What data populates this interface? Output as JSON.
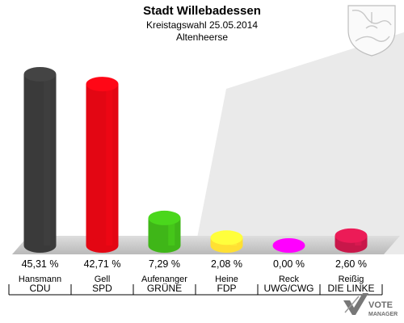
{
  "chart_data": {
    "type": "bar",
    "title": "Stadt Willebadessen",
    "subtitle": "Kreistagswahl 25.05.2014",
    "subtitle2": "Altenheerse",
    "unit": "%",
    "ylim": [
      0,
      50
    ],
    "categories": [
      "CDU",
      "SPD",
      "GRÜNE",
      "FDP",
      "UWG/CWG",
      "DIE LINKE"
    ],
    "candidates": [
      "Hansmann",
      "Gell",
      "Aufenanger",
      "Heine",
      "Reck",
      "Reißig"
    ],
    "values": [
      45.31,
      42.71,
      7.29,
      2.08,
      0.0,
      2.6
    ],
    "value_labels": [
      "45,31 %",
      "42,71 %",
      "7,29 %",
      "2,08 %",
      "0,00 %",
      "2,60 %"
    ],
    "colors": [
      "#3a3a3a",
      "#e30613",
      "#3fb618",
      "#ffe033",
      "#ff00ff",
      "#c8174a"
    ]
  },
  "branding": {
    "logo_text_line1": "VOTE",
    "logo_text_line2": "MANAGER"
  }
}
